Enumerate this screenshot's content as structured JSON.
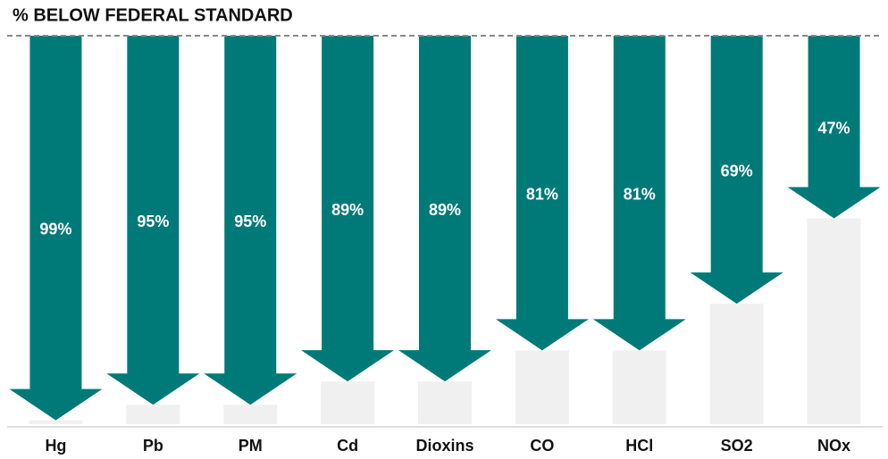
{
  "chart_data": {
    "type": "arrow-bar",
    "title": "% BELOW FEDERAL STANDARD",
    "categories": [
      "Hg",
      "Pb",
      "PM",
      "Cd",
      "Dioxins",
      "CO",
      "HCl",
      "SO2",
      "NOx"
    ],
    "values": [
      99,
      95,
      95,
      89,
      89,
      81,
      81,
      69,
      47
    ],
    "value_labels": [
      "99%",
      "95%",
      "95%",
      "89%",
      "89%",
      "81%",
      "81%",
      "69%",
      "47%"
    ],
    "color": "#007a78",
    "remainder_color": "#f0f0f0",
    "ylim": [
      0,
      100
    ]
  }
}
